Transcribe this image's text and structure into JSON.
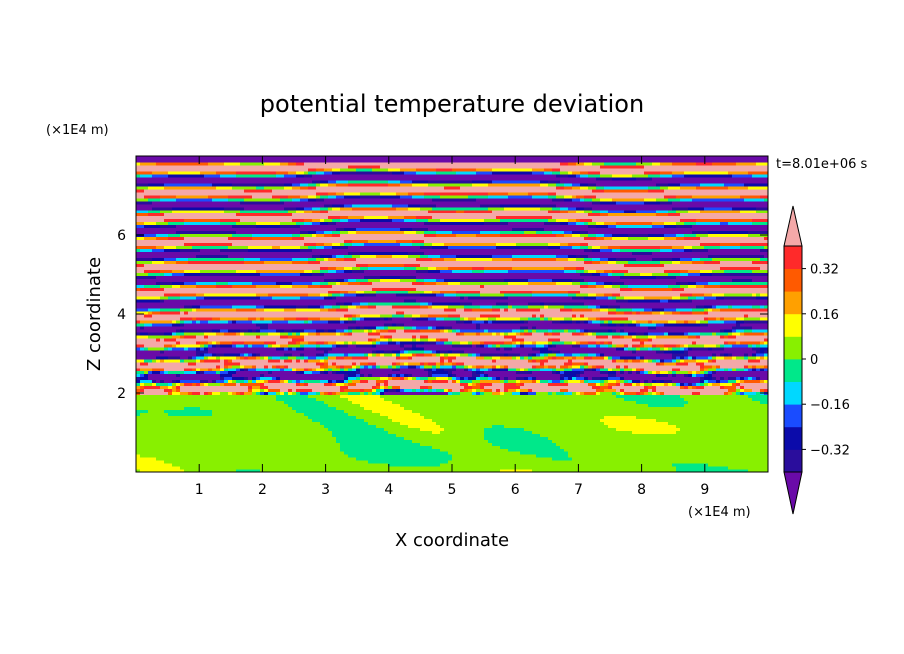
{
  "chart_data": {
    "type": "heatmap",
    "title": "potential temperature deviation",
    "xlabel": "X coordinate",
    "ylabel": "Z coordinate",
    "x_unit": "(×1E4 m)",
    "y_unit": "(×1E4 m)",
    "time_label": "t=8.01e+06 s",
    "xlim": [
      0,
      10
    ],
    "ylim": [
      0,
      8
    ],
    "x_ticks": [
      1,
      2,
      3,
      4,
      5,
      6,
      7,
      8,
      9
    ],
    "y_ticks": [
      2,
      4,
      6
    ],
    "colorbar": {
      "levels": [
        -0.4,
        -0.32,
        -0.24,
        -0.16,
        -0.08,
        0,
        0.08,
        0.16,
        0.24,
        0.32,
        0.4
      ],
      "tick_labels": [
        "0.32",
        "0.16",
        "0",
        "−0.16",
        "−0.32"
      ],
      "tick_values": [
        0.32,
        0.16,
        0,
        -0.16,
        -0.32
      ],
      "colors": [
        "#2a0d9c",
        "#0b0baa",
        "#1a4cff",
        "#00d8ff",
        "#00e88a",
        "#88f000",
        "#ffff00",
        "#ffa000",
        "#ff5a00",
        "#ff2a2a"
      ],
      "under_color": "#6a0aa8",
      "over_color": "#f4a8a8"
    },
    "regions": {
      "stratified_layer_z": [
        2,
        8
      ],
      "mixed_layer_z": [
        0,
        2
      ]
    }
  }
}
